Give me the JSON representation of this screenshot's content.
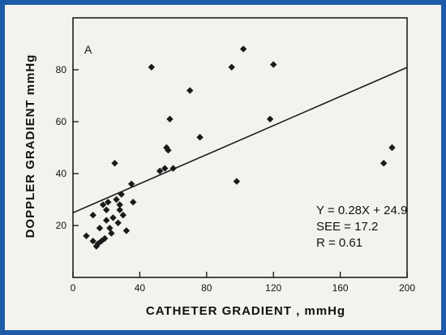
{
  "chart_data": {
    "type": "scatter",
    "panel_label": "A",
    "xlabel": "CATHETER GRADIENT , mmHg",
    "ylabel": "DOPPLER GRADIENT  mmHg",
    "xlim": [
      0,
      200
    ],
    "ylim": [
      0,
      100
    ],
    "x_ticks": [
      0,
      40,
      80,
      120,
      160,
      200
    ],
    "y_ticks": [
      20,
      40,
      60,
      80
    ],
    "grid": false,
    "colors": {
      "marker": "#1a1a1a",
      "line": "#1a1a1a",
      "frame": "#1e5aa8"
    },
    "points": [
      {
        "x": 8,
        "y": 16
      },
      {
        "x": 12,
        "y": 24
      },
      {
        "x": 12,
        "y": 14
      },
      {
        "x": 14,
        "y": 12
      },
      {
        "x": 15,
        "y": 13
      },
      {
        "x": 16,
        "y": 19
      },
      {
        "x": 17,
        "y": 14
      },
      {
        "x": 18,
        "y": 28
      },
      {
        "x": 19,
        "y": 15
      },
      {
        "x": 20,
        "y": 26
      },
      {
        "x": 20,
        "y": 22
      },
      {
        "x": 21,
        "y": 29
      },
      {
        "x": 22,
        "y": 19
      },
      {
        "x": 23,
        "y": 17
      },
      {
        "x": 24,
        "y": 23
      },
      {
        "x": 25,
        "y": 44
      },
      {
        "x": 26,
        "y": 30
      },
      {
        "x": 27,
        "y": 21
      },
      {
        "x": 28,
        "y": 28
      },
      {
        "x": 28,
        "y": 26
      },
      {
        "x": 29,
        "y": 32
      },
      {
        "x": 30,
        "y": 24
      },
      {
        "x": 32,
        "y": 18
      },
      {
        "x": 35,
        "y": 36
      },
      {
        "x": 36,
        "y": 29
      },
      {
        "x": 47,
        "y": 81
      },
      {
        "x": 52,
        "y": 41
      },
      {
        "x": 55,
        "y": 42
      },
      {
        "x": 56,
        "y": 50
      },
      {
        "x": 57,
        "y": 49
      },
      {
        "x": 58,
        "y": 61
      },
      {
        "x": 60,
        "y": 42
      },
      {
        "x": 70,
        "y": 72
      },
      {
        "x": 76,
        "y": 54
      },
      {
        "x": 95,
        "y": 81
      },
      {
        "x": 98,
        "y": 37
      },
      {
        "x": 102,
        "y": 88
      },
      {
        "x": 118,
        "y": 61
      },
      {
        "x": 120,
        "y": 82
      },
      {
        "x": 186,
        "y": 44
      },
      {
        "x": 191,
        "y": 50
      }
    ],
    "regression": {
      "slope": 0.28,
      "intercept": 24.9,
      "x_range": [
        0,
        200
      ]
    },
    "annotations": {
      "equation": "Y  =  0.28X  +  24.9",
      "see": "SEE  =  17.2",
      "r": "R   =  0.61"
    }
  }
}
